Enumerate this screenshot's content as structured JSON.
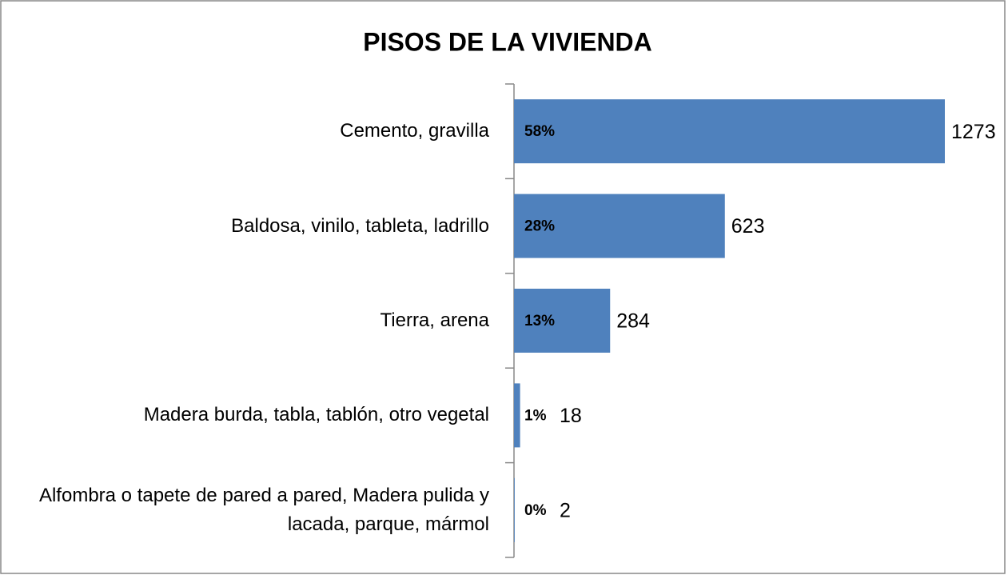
{
  "chart_data": {
    "type": "bar",
    "orientation": "horizontal",
    "title": "PISOS DE LA VIVIENDA",
    "categories": [
      "Cemento, gravilla",
      "Baldosa, vinilo, tableta, ladrillo",
      "Tierra, arena",
      "Madera burda, tabla, tablón, otro vegetal",
      "Alfombra o tapete de pared a pared, Madera pulida y lacada, parque, mármol"
    ],
    "values": [
      1273,
      623,
      284,
      18,
      2
    ],
    "shares": [
      58,
      28,
      13,
      1,
      0
    ],
    "share_labels": [
      "58%",
      "28%",
      "13%",
      "1%",
      "0%"
    ],
    "color": "#4f81bd",
    "xlim": [
      0,
      1400
    ]
  }
}
